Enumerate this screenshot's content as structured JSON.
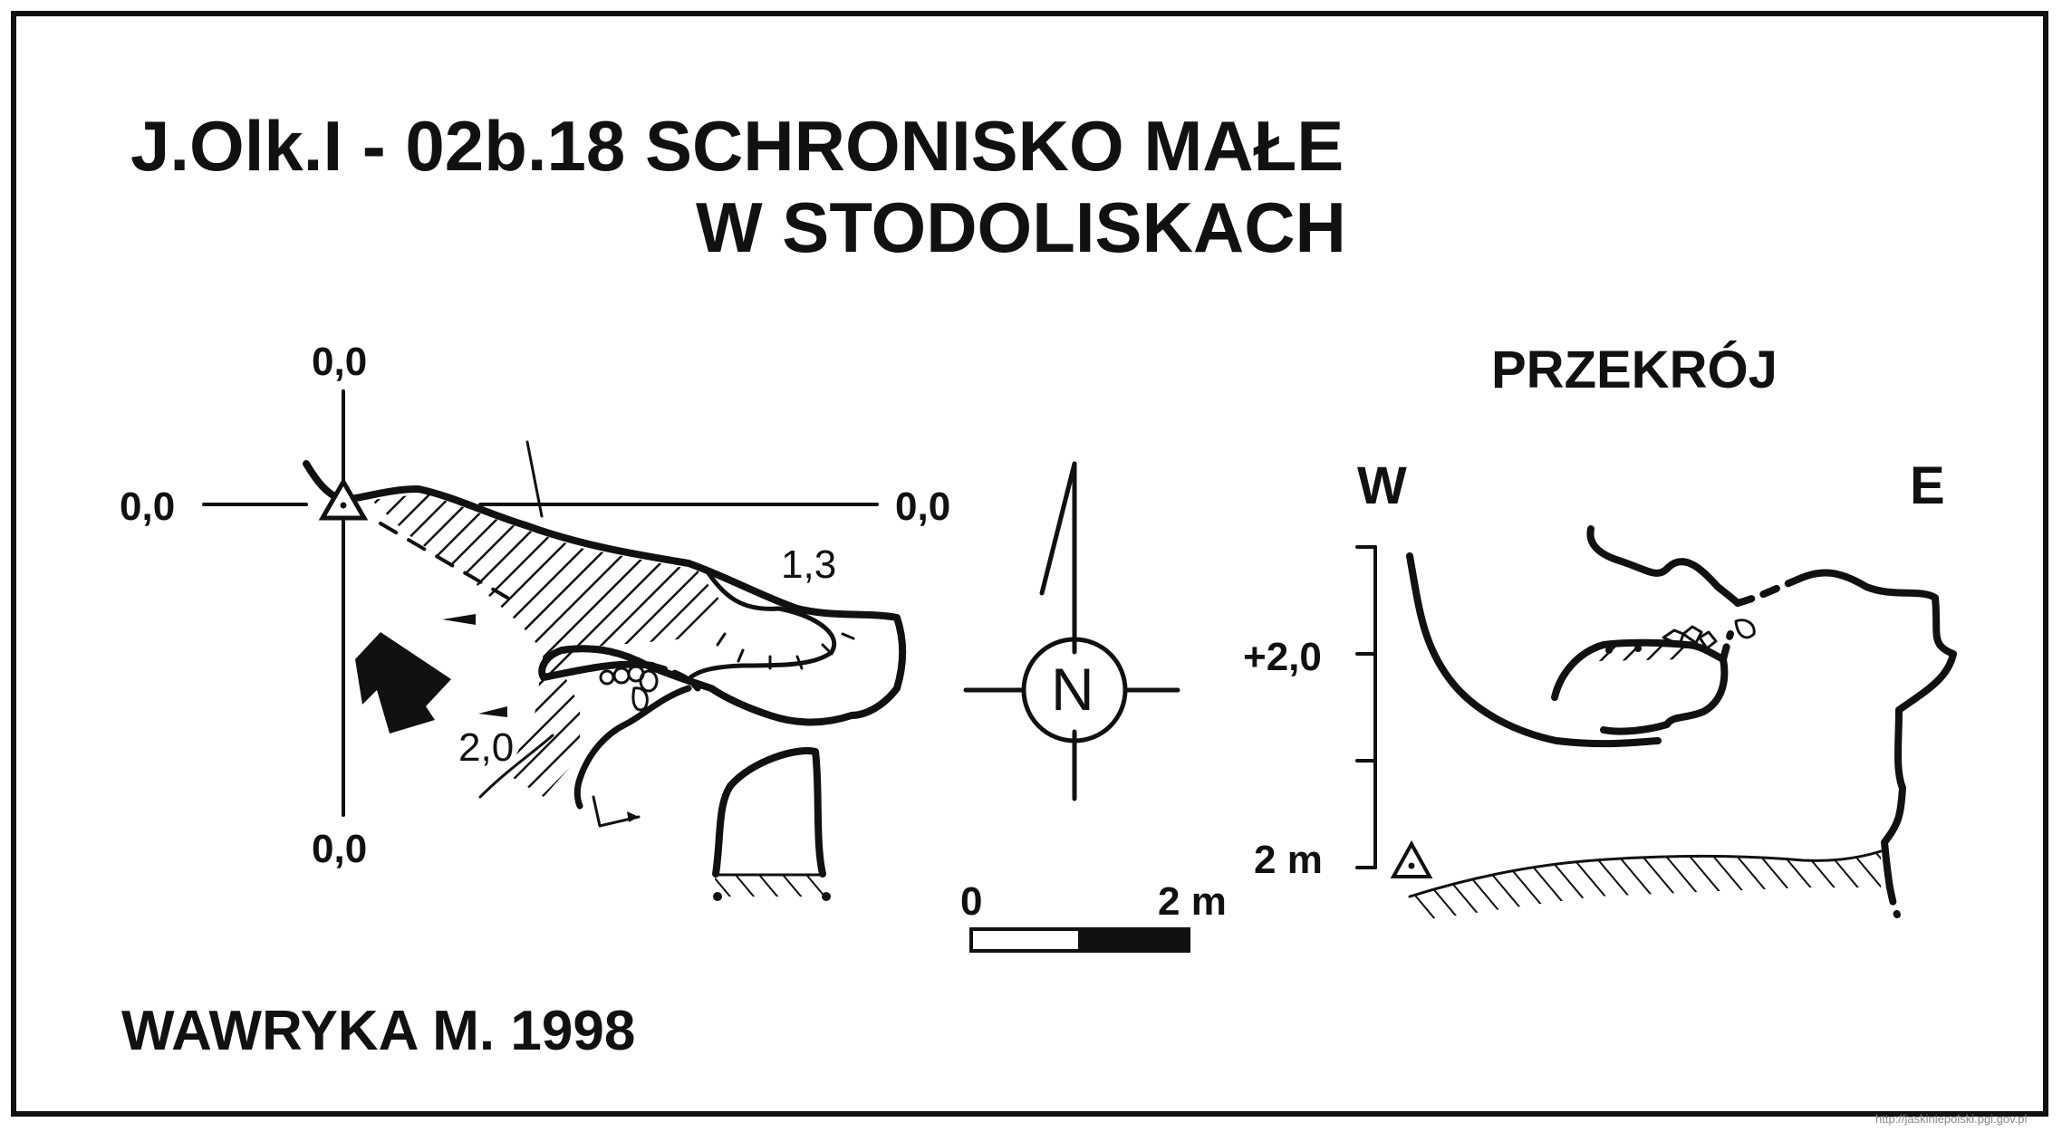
{
  "title": {
    "line1": "J.Olk.I - 02b.18  SCHRONISKO MAŁE",
    "line2": "W STODOLISKACH"
  },
  "plan": {
    "axis_top": "0,0",
    "axis_left": "0,0",
    "axis_right": "0,0",
    "axis_bottom": "0,0",
    "height_1": "1,3",
    "height_2": "2,0"
  },
  "north": {
    "letter": "N"
  },
  "scale": {
    "start": "0",
    "end": "2 m"
  },
  "section": {
    "title": "PRZEKRÓJ",
    "west": "W",
    "east": "E",
    "mark_upper": "+2,0",
    "mark_lower": "2 m"
  },
  "author": "WAWRYKA M. 1998",
  "watermark": "http://jaskiniepolski.pgi.gov.pl"
}
